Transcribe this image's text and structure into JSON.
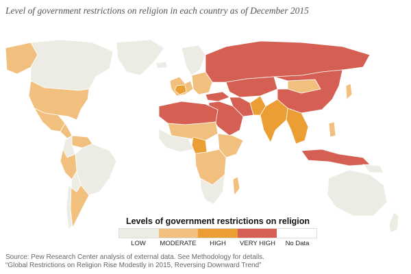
{
  "title": "Level of government restrictions on religion in each country as of December 2015",
  "legend": {
    "title": "Levels of government restrictions on religion",
    "items": [
      {
        "label": "LOW",
        "color": "#ecebe4"
      },
      {
        "label": "MODERATE",
        "color": "#f2c07e"
      },
      {
        "label": "HIGH",
        "color": "#ea9e33"
      },
      {
        "label": "VERY HIGH",
        "color": "#d55f52"
      },
      {
        "label": "No Data",
        "color": "#ffffff"
      }
    ]
  },
  "source": {
    "line1": "Source: Pew Research Center analysis of external data. See Methodology for details.",
    "line2": "“Global Restrictions on Religion Rise Modestly in 2015, Reversing Downward Trend”"
  },
  "regions": [
    {
      "id": "canada",
      "level": "LOW"
    },
    {
      "id": "alaska",
      "level": "MODERATE"
    },
    {
      "id": "greenland",
      "level": "LOW"
    },
    {
      "id": "usa",
      "level": "MODERATE"
    },
    {
      "id": "mexico",
      "level": "MODERATE"
    },
    {
      "id": "central-america",
      "level": "MODERATE"
    },
    {
      "id": "venezuela",
      "level": "MODERATE"
    },
    {
      "id": "colombia",
      "level": "LOW"
    },
    {
      "id": "brazil",
      "level": "LOW"
    },
    {
      "id": "peru",
      "level": "MODERATE"
    },
    {
      "id": "bolivia",
      "level": "LOW"
    },
    {
      "id": "argentina",
      "level": "MODERATE"
    },
    {
      "id": "chile",
      "level": "LOW"
    },
    {
      "id": "iceland",
      "level": "LOW"
    },
    {
      "id": "scandinavia",
      "level": "LOW"
    },
    {
      "id": "western-europe",
      "level": "MODERATE"
    },
    {
      "id": "france",
      "level": "HIGH"
    },
    {
      "id": "eastern-europe",
      "level": "MODERATE"
    },
    {
      "id": "russia",
      "level": "VERY HIGH"
    },
    {
      "id": "turkey",
      "level": "VERY HIGH"
    },
    {
      "id": "middle-east",
      "level": "VERY HIGH"
    },
    {
      "id": "iran",
      "level": "VERY HIGH"
    },
    {
      "id": "central-asia",
      "level": "VERY HIGH"
    },
    {
      "id": "mongolia",
      "level": "MODERATE"
    },
    {
      "id": "china",
      "level": "VERY HIGH"
    },
    {
      "id": "japan",
      "level": "MODERATE"
    },
    {
      "id": "pakistan",
      "level": "HIGH"
    },
    {
      "id": "india",
      "level": "HIGH"
    },
    {
      "id": "southeast-asia",
      "level": "HIGH"
    },
    {
      "id": "indonesia",
      "level": "VERY HIGH"
    },
    {
      "id": "philippines",
      "level": "MODERATE"
    },
    {
      "id": "north-africa",
      "level": "VERY HIGH"
    },
    {
      "id": "sahel",
      "level": "MODERATE"
    },
    {
      "id": "west-africa",
      "level": "LOW"
    },
    {
      "id": "nigeria",
      "level": "HIGH"
    },
    {
      "id": "central-africa",
      "level": "MODERATE"
    },
    {
      "id": "horn-of-africa",
      "level": "MODERATE"
    },
    {
      "id": "southern-africa",
      "level": "LOW"
    },
    {
      "id": "madagascar",
      "level": "MODERATE"
    },
    {
      "id": "australia",
      "level": "LOW"
    },
    {
      "id": "new-zealand",
      "level": "LOW"
    },
    {
      "id": "png",
      "level": "LOW"
    }
  ]
}
